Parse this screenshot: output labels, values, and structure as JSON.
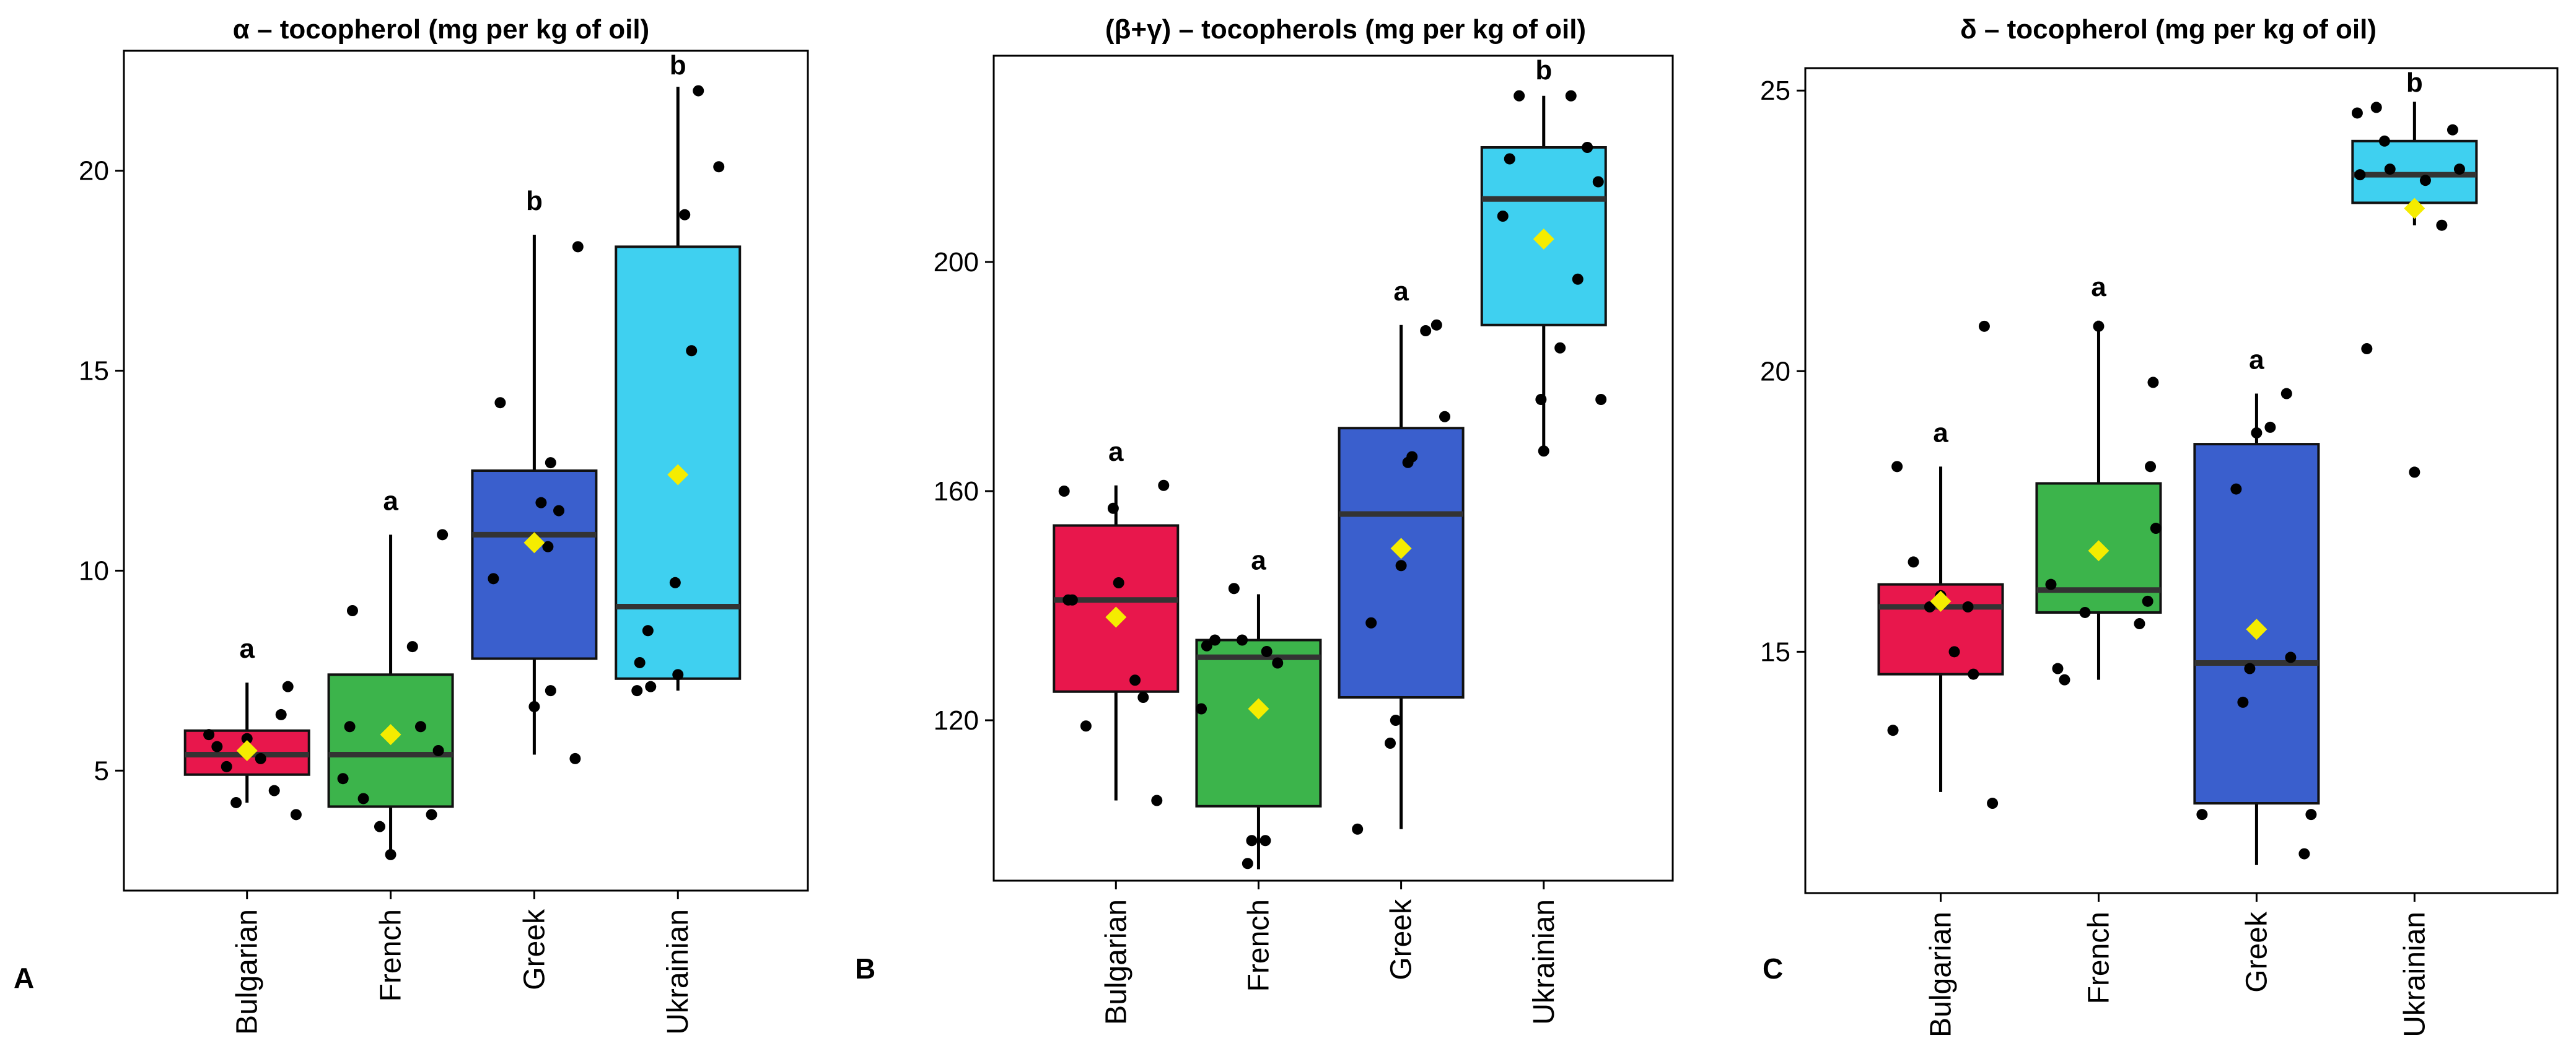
{
  "chart_data": [
    {
      "type": "boxplot",
      "panel_label": "A",
      "title": "α – tocopherol (mg per kg of oil)",
      "categories": [
        "Bulgarian",
        "French",
        "Greek",
        "Ukrainian"
      ],
      "colors": [
        "#e8174c",
        "#3cb44b",
        "#3a5fcd",
        "#3fd0f0"
      ],
      "ylim": [
        2,
        23
      ],
      "yticks": [
        5,
        10,
        15,
        20
      ],
      "tick_labels": [
        "5",
        "10",
        "15",
        "20"
      ],
      "boxes": [
        {
          "whisker_low": 4.2,
          "q1": 4.9,
          "median": 5.4,
          "q3": 6.0,
          "whisker_high": 7.2,
          "mean": 5.5
        },
        {
          "whisker_low": 2.9,
          "q1": 4.1,
          "median": 5.4,
          "q3": 7.4,
          "whisker_high": 10.9,
          "mean": 5.9
        },
        {
          "whisker_low": 5.4,
          "q1": 7.8,
          "median": 10.9,
          "q3": 12.5,
          "whisker_high": 18.4,
          "mean": 10.7
        },
        {
          "whisker_low": 7.0,
          "q1": 7.3,
          "median": 9.1,
          "q3": 18.1,
          "whisker_high": 22.1,
          "mean": 12.4
        }
      ],
      "significance": [
        "a",
        "a",
        "b",
        "b"
      ],
      "points": [
        [
          [
            -0.28,
            5.9
          ],
          [
            -0.22,
            5.6
          ],
          [
            -0.15,
            5.1
          ],
          [
            -0.08,
            4.2
          ],
          [
            0.0,
            5.8
          ],
          [
            0.1,
            5.3
          ],
          [
            0.2,
            4.5
          ],
          [
            0.25,
            6.4
          ],
          [
            0.3,
            7.1
          ],
          [
            0.36,
            3.9
          ]
        ],
        [
          [
            -0.35,
            4.8
          ],
          [
            -0.3,
            6.1
          ],
          [
            -0.28,
            9.0
          ],
          [
            -0.2,
            4.3
          ],
          [
            -0.08,
            3.6
          ],
          [
            0.0,
            2.9
          ],
          [
            0.16,
            8.1
          ],
          [
            0.22,
            6.1
          ],
          [
            0.3,
            3.9
          ],
          [
            0.35,
            5.5
          ],
          [
            0.38,
            10.9
          ]
        ],
        [
          [
            -0.25,
            14.2
          ],
          [
            -0.3,
            9.8
          ],
          [
            0.0,
            6.6
          ],
          [
            0.05,
            11.7
          ],
          [
            0.1,
            10.6
          ],
          [
            0.12,
            7.0
          ],
          [
            0.12,
            12.7
          ],
          [
            0.18,
            11.5
          ],
          [
            0.3,
            5.3
          ],
          [
            0.32,
            18.1
          ]
        ],
        [
          [
            -0.3,
            7.0
          ],
          [
            -0.28,
            7.7
          ],
          [
            -0.22,
            8.5
          ],
          [
            -0.2,
            7.1
          ],
          [
            -0.02,
            9.7
          ],
          [
            0.0,
            7.4
          ],
          [
            0.05,
            18.9
          ],
          [
            0.1,
            15.5
          ],
          [
            0.15,
            22.0
          ],
          [
            0.3,
            20.1
          ]
        ]
      ]
    },
    {
      "type": "boxplot",
      "panel_label": "B",
      "title": "(β+γ) – tocopherols (mg per kg of oil)",
      "categories": [
        "Bulgarian",
        "French",
        "Greek",
        "Ukrainian"
      ],
      "colors": [
        "#e8174c",
        "#3cb44b",
        "#3a5fcd",
        "#3fd0f0"
      ],
      "ylim": [
        92,
        236
      ],
      "yticks": [
        120,
        160,
        200
      ],
      "tick_labels": [
        "120",
        "160",
        "200"
      ],
      "boxes": [
        {
          "whisker_low": 106,
          "q1": 125,
          "median": 141,
          "q3": 154,
          "whisker_high": 161,
          "mean": 138
        },
        {
          "whisker_low": 94,
          "q1": 105,
          "median": 131,
          "q3": 134,
          "whisker_high": 142,
          "mean": 122
        },
        {
          "whisker_low": 101,
          "q1": 124,
          "median": 156,
          "q3": 171,
          "whisker_high": 189,
          "mean": 150
        },
        {
          "whisker_low": 167,
          "q1": 189,
          "median": 211,
          "q3": 220,
          "whisker_high": 229,
          "mean": 204
        }
      ],
      "significance": [
        "a",
        "a",
        "a",
        "b"
      ],
      "points": [
        [
          [
            -0.38,
            160
          ],
          [
            -0.35,
            141
          ],
          [
            -0.32,
            141
          ],
          [
            -0.22,
            119
          ],
          [
            -0.02,
            157
          ],
          [
            0.02,
            144
          ],
          [
            0.14,
            127
          ],
          [
            0.2,
            124
          ],
          [
            0.3,
            106
          ],
          [
            0.35,
            161
          ]
        ],
        [
          [
            -0.42,
            122
          ],
          [
            -0.38,
            133
          ],
          [
            -0.32,
            134
          ],
          [
            -0.18,
            143
          ],
          [
            -0.12,
            134
          ],
          [
            -0.05,
            99
          ],
          [
            -0.08,
            95
          ],
          [
            0.05,
            99
          ],
          [
            0.06,
            132
          ],
          [
            0.14,
            130
          ]
        ],
        [
          [
            -0.32,
            101
          ],
          [
            -0.22,
            137
          ],
          [
            -0.08,
            116
          ],
          [
            -0.04,
            120
          ],
          [
            0.0,
            147
          ],
          [
            0.05,
            165
          ],
          [
            0.08,
            166
          ],
          [
            0.18,
            188
          ],
          [
            0.26,
            189
          ],
          [
            0.32,
            173
          ]
        ],
        [
          [
            -0.3,
            208
          ],
          [
            -0.25,
            218
          ],
          [
            -0.18,
            229
          ],
          [
            -0.02,
            176
          ],
          [
            0.0,
            167
          ],
          [
            0.12,
            185
          ],
          [
            0.2,
            229
          ],
          [
            0.25,
            197
          ],
          [
            0.32,
            220
          ],
          [
            0.4,
            214
          ],
          [
            0.42,
            176
          ]
        ]
      ]
    },
    {
      "type": "boxplot",
      "panel_label": "C",
      "title": "δ – tocopherol (mg per kg of oil)",
      "categories": [
        "Bulgarian",
        "French",
        "Greek",
        "Ukrainian"
      ],
      "colors": [
        "#e8174c",
        "#3cb44b",
        "#3a5fcd",
        "#3fd0f0"
      ],
      "ylim": [
        10.7,
        25.4
      ],
      "yticks": [
        15,
        20,
        25
      ],
      "tick_labels": [
        "15",
        "20",
        "25"
      ],
      "boxes": [
        {
          "whisker_low": 12.5,
          "q1": 14.6,
          "median": 15.8,
          "q3": 16.2,
          "whisker_high": 18.3,
          "mean": 15.9
        },
        {
          "whisker_low": 14.5,
          "q1": 15.7,
          "median": 16.1,
          "q3": 18.0,
          "whisker_high": 20.9,
          "mean": 16.8
        },
        {
          "whisker_low": 11.2,
          "q1": 12.3,
          "median": 14.8,
          "q3": 18.7,
          "whisker_high": 19.6,
          "mean": 15.4
        },
        {
          "whisker_low": 22.6,
          "q1": 23.0,
          "median": 23.5,
          "q3": 24.1,
          "whisker_high": 24.8,
          "mean": 22.9
        }
      ],
      "significance": [
        "a",
        "a",
        "a",
        "b"
      ],
      "points": [
        [
          [
            -0.35,
            13.6
          ],
          [
            -0.32,
            18.3
          ],
          [
            -0.2,
            16.6
          ],
          [
            -0.08,
            15.8
          ],
          [
            0.0,
            16.0
          ],
          [
            0.1,
            15.0
          ],
          [
            0.2,
            15.8
          ],
          [
            0.24,
            14.6
          ],
          [
            0.32,
            20.8
          ],
          [
            0.38,
            12.3
          ]
        ],
        [
          [
            -0.35,
            16.2
          ],
          [
            -0.3,
            14.7
          ],
          [
            -0.25,
            14.5
          ],
          [
            -0.1,
            15.7
          ],
          [
            0.0,
            20.8
          ],
          [
            0.3,
            15.5
          ],
          [
            0.36,
            15.9
          ],
          [
            0.38,
            18.3
          ],
          [
            0.4,
            19.8
          ],
          [
            0.42,
            17.2
          ]
        ],
        [
          [
            -0.4,
            12.1
          ],
          [
            -0.15,
            17.9
          ],
          [
            -0.1,
            14.1
          ],
          [
            -0.05,
            14.7
          ],
          [
            0.0,
            18.9
          ],
          [
            0.1,
            19.0
          ],
          [
            0.22,
            19.6
          ],
          [
            0.25,
            14.9
          ],
          [
            0.35,
            11.4
          ],
          [
            0.4,
            12.1
          ]
        ],
        [
          [
            -0.42,
            24.6
          ],
          [
            -0.4,
            23.5
          ],
          [
            -0.35,
            20.4
          ],
          [
            -0.28,
            24.7
          ],
          [
            -0.22,
            24.1
          ],
          [
            -0.18,
            23.6
          ],
          [
            0.08,
            23.4
          ],
          [
            0.2,
            22.6
          ],
          [
            0.28,
            24.3
          ],
          [
            0.33,
            23.6
          ],
          [
            0.0,
            18.2
          ]
        ]
      ]
    }
  ]
}
